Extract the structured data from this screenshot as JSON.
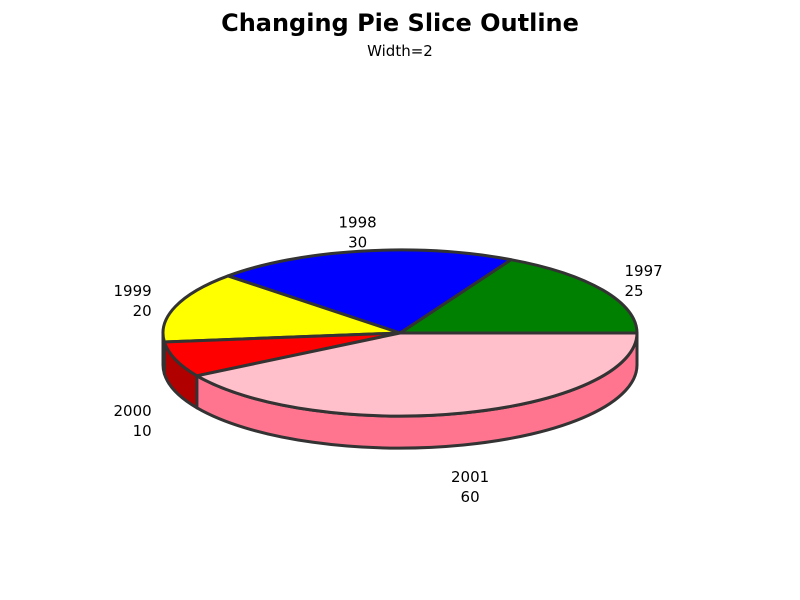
{
  "chart_data": {
    "type": "pie",
    "style": "3d",
    "title": "Changing Pie Slice Outline",
    "subtitle": "Width=2",
    "outline_color": "#333333",
    "slices": [
      {
        "category": "1997",
        "value": 25,
        "color": "#008000",
        "side_color": "#005a00"
      },
      {
        "category": "1998",
        "value": 30,
        "color": "#0000ff",
        "side_color": "#0000b0"
      },
      {
        "category": "1999",
        "value": 20,
        "color": "#ffff00",
        "side_color": "#b0b000"
      },
      {
        "category": "2000",
        "value": 10,
        "color": "#ff0000",
        "side_color": "#b00000"
      },
      {
        "category": "2001",
        "value": 60,
        "color": "#ffc0cb",
        "side_color": "#ff7590"
      }
    ]
  }
}
